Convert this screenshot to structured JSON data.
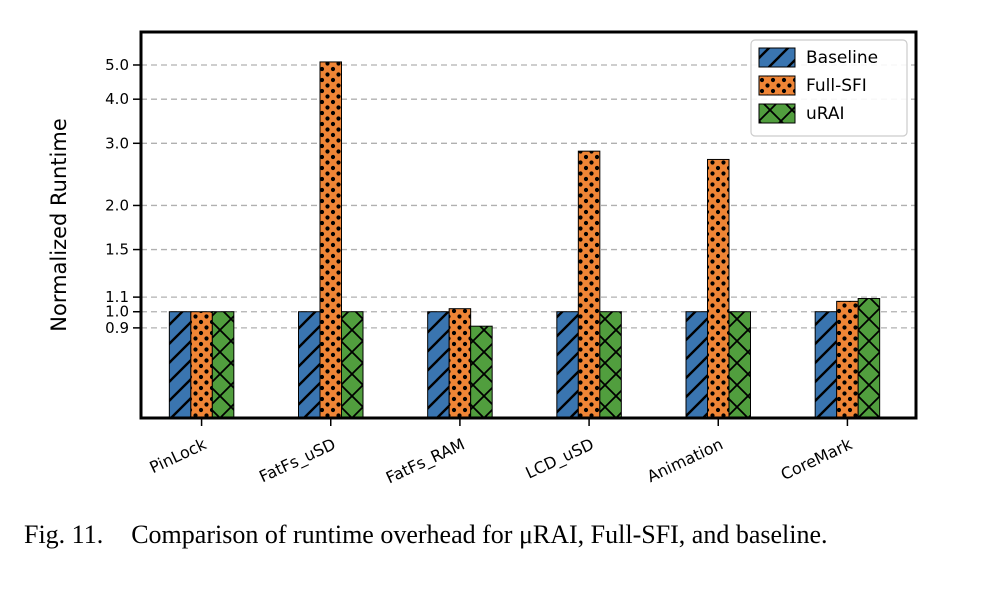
{
  "caption": {
    "figure_label": "Fig. 11.",
    "text": "Comparison of runtime overhead for μRAI, Full-SFI, and baseline."
  },
  "chart_data": {
    "type": "bar",
    "ylabel": "Normalized Runtime",
    "xlabel": "",
    "yscale": "log",
    "ylim": [
      0.5,
      6.2
    ],
    "yticks": [
      0.9,
      1.0,
      1.1,
      1.5,
      2.0,
      3.0,
      4.0,
      5.0
    ],
    "ytick_labels": [
      "0.9",
      "1.0",
      "1.1",
      "1.5",
      "2.0",
      "3.0",
      "4.0",
      "5.0"
    ],
    "grid": true,
    "legend_position": "top-right",
    "categories": [
      "PinLock",
      "FatFs_uSD",
      "FatFs_RAM",
      "LCD_uSD",
      "Animation",
      "CoreMark"
    ],
    "series": [
      {
        "name": "Baseline",
        "values": [
          1.0,
          1.0,
          1.0,
          1.0,
          1.0,
          1.0
        ],
        "color": "#3a75b0",
        "hatch": "diagonal"
      },
      {
        "name": "Full-SFI",
        "values": [
          1.0,
          5.1,
          1.02,
          2.85,
          2.7,
          1.07
        ],
        "color": "#ef8536",
        "hatch": "dots"
      },
      {
        "name": "uRAI",
        "values": [
          1.0,
          1.0,
          0.91,
          1.0,
          1.0,
          1.09
        ],
        "color": "#519e3e",
        "hatch": "cross"
      }
    ]
  }
}
